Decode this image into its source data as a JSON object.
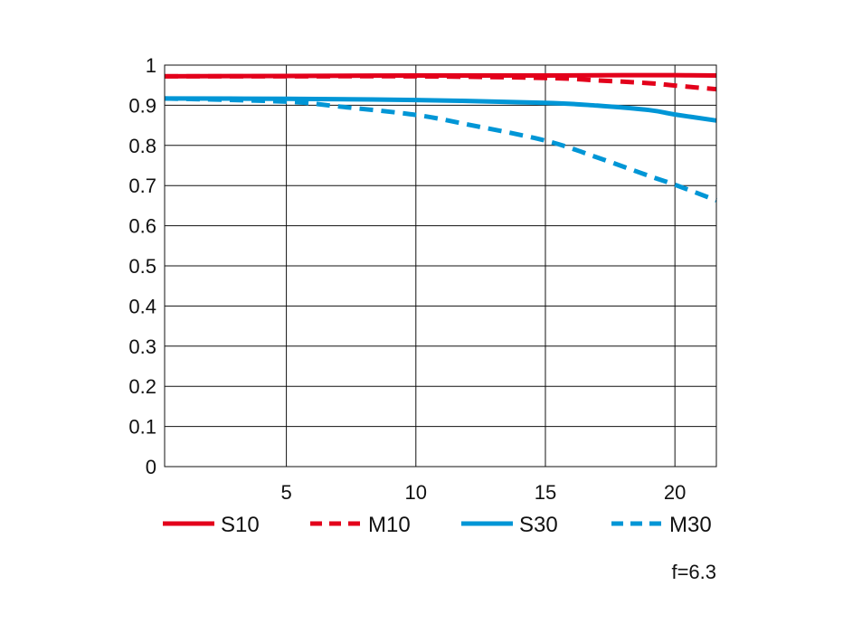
{
  "chart_data": {
    "type": "line",
    "title": "",
    "xlabel": "",
    "ylabel": "",
    "xlim": [
      0.3,
      21.6
    ],
    "ylim": [
      0,
      1
    ],
    "x_ticks": [
      5,
      10,
      15,
      20
    ],
    "x_tick_labels": [
      "5",
      "10",
      "15",
      "20"
    ],
    "y_ticks": [
      0,
      0.1,
      0.2,
      0.3,
      0.4,
      0.5,
      0.6,
      0.7,
      0.8,
      0.9,
      1
    ],
    "y_tick_labels": [
      "0",
      "0.1",
      "0.2",
      "0.3",
      "0.4",
      "0.5",
      "0.6",
      "0.7",
      "0.8",
      "0.9",
      "1"
    ],
    "grid": true,
    "legend_position": "bottom",
    "annotation": "f=6.3",
    "series": [
      {
        "name": "S10",
        "color": "#e3001b",
        "dashed": false,
        "x": [
          0.3,
          5,
          10,
          15,
          18,
          20,
          21.6
        ],
        "y": [
          0.972,
          0.973,
          0.974,
          0.974,
          0.975,
          0.975,
          0.974
        ]
      },
      {
        "name": "M10",
        "color": "#e3001b",
        "dashed": true,
        "x": [
          0.3,
          5,
          10,
          15,
          17,
          19,
          20,
          21.6
        ],
        "y": [
          0.972,
          0.972,
          0.972,
          0.968,
          0.962,
          0.955,
          0.949,
          0.94
        ]
      },
      {
        "name": "S30",
        "color": "#0096d6",
        "dashed": false,
        "x": [
          0.3,
          5,
          10,
          15,
          17,
          19,
          20,
          21.6
        ],
        "y": [
          0.917,
          0.916,
          0.913,
          0.906,
          0.899,
          0.888,
          0.877,
          0.862
        ]
      },
      {
        "name": "M30",
        "color": "#0096d6",
        "dashed": true,
        "x": [
          0.3,
          5,
          7,
          10,
          12,
          15,
          17,
          19,
          20,
          21.6
        ],
        "y": [
          0.917,
          0.909,
          0.897,
          0.876,
          0.852,
          0.812,
          0.77,
          0.724,
          0.702,
          0.663
        ]
      }
    ]
  }
}
